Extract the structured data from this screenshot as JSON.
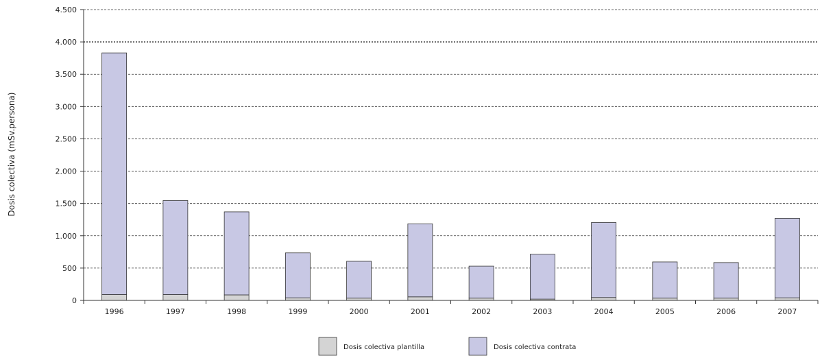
{
  "chart_data": {
    "type": "bar",
    "stacked": true,
    "ylabel": "Dosis colectiva (mSv.persona)",
    "ylim": [
      0,
      4500
    ],
    "y_ticks": [
      0,
      500,
      1000,
      1500,
      2000,
      2500,
      3000,
      3500,
      4000,
      4500
    ],
    "y_tick_labels": [
      "0",
      "500",
      "1.000",
      "1.500",
      "2.000",
      "2.500",
      "3.000",
      "3.500",
      "4.000",
      "4.500"
    ],
    "categories": [
      "1996",
      "1997",
      "1998",
      "1999",
      "2000",
      "2001",
      "2002",
      "2003",
      "2004",
      "2005",
      "2006",
      "2007"
    ],
    "series": [
      {
        "name": "Dosis colectiva plantilla",
        "color": "#d4d4d4",
        "values": [
          90,
          90,
          85,
          40,
          35,
          55,
          35,
          20,
          45,
          35,
          35,
          40
        ]
      },
      {
        "name": "Dosis colectiva contrata",
        "color": "#c8c8e4",
        "values": [
          3740,
          1455,
          1285,
          695,
          570,
          1130,
          495,
          695,
          1160,
          560,
          550,
          1230
        ]
      }
    ],
    "grid": true,
    "legend_position": "bottom"
  }
}
